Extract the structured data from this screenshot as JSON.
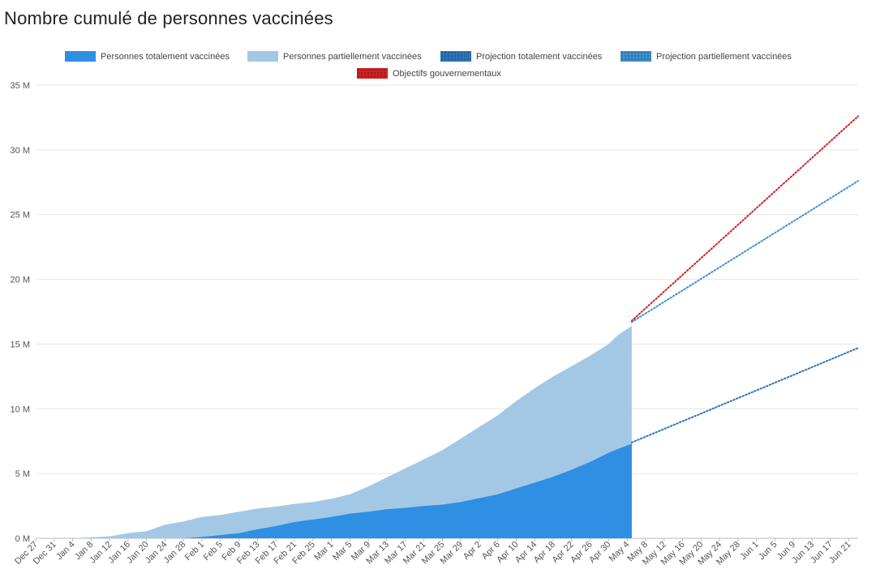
{
  "title": "Nombre cumulé de personnes vaccinées",
  "colors": {
    "fully": "#2f8fe3",
    "partial": "#a3c8e6",
    "proj_fully": "#2c74b8",
    "proj_partial": "#3d8fcc",
    "objectives": "#cc2222",
    "grid": "#e6e6e6",
    "axis": "#bbbbbb"
  },
  "legend": [
    {
      "label": "Personnes totalement vaccinées",
      "color": "#2f8fe3",
      "style": "solid"
    },
    {
      "label": "Personnes partiellement vaccinées",
      "color": "#a3c8e6",
      "style": "solid"
    },
    {
      "label": "Projection totalement vaccinées",
      "color": "#2c74b8",
      "style": "dotted"
    },
    {
      "label": "Projection partiellement vaccinées",
      "color": "#3d8fcc",
      "style": "dotted"
    },
    {
      "label": "Objectifs gouvernementaux",
      "color": "#cc2222",
      "style": "dotted"
    }
  ],
  "chart_data": {
    "type": "area",
    "title": "Nombre cumulé de personnes vaccinées",
    "x_unit": "date (2020-12-27 to 2021-06-23)",
    "ylim": [
      0,
      35
    ],
    "y_unit": "M",
    "y_ticks": [
      "0 M",
      "5 M",
      "10 M",
      "15 M",
      "20 M",
      "25 M",
      "30 M",
      "35 M"
    ],
    "x_ticks": [
      "Dec 27",
      "Dec 31",
      "Jan 4",
      "Jan 8",
      "Jan 12",
      "Jan 16",
      "Jan 20",
      "Jan 24",
      "Jan 28",
      "Feb 1",
      "Feb 5",
      "Feb 9",
      "Feb 13",
      "Feb 17",
      "Feb 21",
      "Feb 25",
      "Mar 1",
      "Mar 5",
      "Mar 9",
      "Mar 13",
      "Mar 17",
      "Mar 21",
      "Mar 25",
      "Mar 29",
      "Apr 2",
      "Apr 6",
      "Apr 10",
      "Apr 14",
      "Apr 18",
      "Apr 22",
      "Apr 26",
      "Apr 30",
      "May 4",
      "May 8",
      "May 12",
      "May 16",
      "May 20",
      "May 24",
      "May 28",
      "Jun 1",
      "Jun 5",
      "Jun 9",
      "Jun 13",
      "Jun 17",
      "Jun 21"
    ],
    "grid": true,
    "legend_position": "top",
    "series": [
      {
        "name": "Personnes partiellement vaccinées",
        "kind": "area",
        "points": [
          [
            "Dec 27",
            0
          ],
          [
            "Jan 4",
            0.01
          ],
          [
            "Jan 8",
            0.08
          ],
          [
            "Jan 12",
            0.15
          ],
          [
            "Jan 16",
            0.4
          ],
          [
            "Jan 20",
            0.55
          ],
          [
            "Jan 24",
            1.05
          ],
          [
            "Jan 28",
            1.3
          ],
          [
            "Feb 1",
            1.65
          ],
          [
            "Feb 5",
            1.8
          ],
          [
            "Feb 9",
            2.05
          ],
          [
            "Feb 13",
            2.3
          ],
          [
            "Feb 17",
            2.45
          ],
          [
            "Feb 21",
            2.65
          ],
          [
            "Feb 25",
            2.8
          ],
          [
            "Mar 1",
            3.05
          ],
          [
            "Mar 5",
            3.4
          ],
          [
            "Mar 9",
            4.0
          ],
          [
            "Mar 13",
            4.7
          ],
          [
            "Mar 17",
            5.4
          ],
          [
            "Mar 21",
            6.1
          ],
          [
            "Mar 25",
            6.8
          ],
          [
            "Mar 29",
            7.7
          ],
          [
            "Apr 2",
            8.6
          ],
          [
            "Apr 6",
            9.5
          ],
          [
            "Apr 10",
            10.6
          ],
          [
            "Apr 14",
            11.6
          ],
          [
            "Apr 18",
            12.5
          ],
          [
            "Apr 22",
            13.3
          ],
          [
            "Apr 26",
            14.1
          ],
          [
            "Apr 30",
            15.0
          ],
          [
            "May 2",
            15.7
          ],
          [
            "May 5",
            16.4
          ]
        ]
      },
      {
        "name": "Personnes totalement vaccinées",
        "kind": "area",
        "points": [
          [
            "Dec 27",
            0
          ],
          [
            "Jan 28",
            0
          ],
          [
            "Feb 1",
            0.1
          ],
          [
            "Feb 5",
            0.25
          ],
          [
            "Feb 9",
            0.4
          ],
          [
            "Feb 13",
            0.7
          ],
          [
            "Feb 17",
            0.95
          ],
          [
            "Feb 21",
            1.25
          ],
          [
            "Feb 25",
            1.45
          ],
          [
            "Mar 1",
            1.65
          ],
          [
            "Mar 5",
            1.9
          ],
          [
            "Mar 9",
            2.05
          ],
          [
            "Mar 13",
            2.25
          ],
          [
            "Mar 17",
            2.35
          ],
          [
            "Mar 21",
            2.5
          ],
          [
            "Mar 25",
            2.6
          ],
          [
            "Mar 29",
            2.8
          ],
          [
            "Apr 2",
            3.1
          ],
          [
            "Apr 6",
            3.4
          ],
          [
            "Apr 10",
            3.85
          ],
          [
            "Apr 14",
            4.3
          ],
          [
            "Apr 18",
            4.75
          ],
          [
            "Apr 22",
            5.3
          ],
          [
            "Apr 26",
            5.9
          ],
          [
            "Apr 30",
            6.6
          ],
          [
            "May 2",
            6.9
          ],
          [
            "May 5",
            7.3
          ]
        ]
      },
      {
        "name": "Projection totalement vaccinées",
        "kind": "dotted-line",
        "points": [
          [
            "May 5",
            7.4
          ],
          [
            "Jun 23",
            14.7
          ]
        ]
      },
      {
        "name": "Projection partiellement vaccinées",
        "kind": "dotted-line",
        "points": [
          [
            "May 5",
            16.7
          ],
          [
            "Jun 23",
            27.6
          ]
        ]
      },
      {
        "name": "Objectifs gouvernementaux",
        "kind": "dotted-line",
        "points": [
          [
            "May 5",
            16.8
          ],
          [
            "Jun 23",
            32.6
          ]
        ]
      }
    ]
  }
}
